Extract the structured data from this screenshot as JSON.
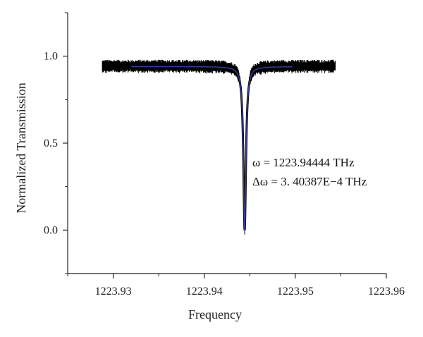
{
  "chart_data": {
    "type": "line",
    "title": "",
    "xlabel": "Frequency",
    "ylabel": "Normalized Transmission",
    "xlim": [
      1223.925,
      1223.96
    ],
    "ylim": [
      -0.25,
      1.25
    ],
    "x_ticks": [
      1223.93,
      1223.94,
      1223.95,
      1223.96
    ],
    "x_tick_labels": [
      "1223.93",
      "1223.94",
      "1223.95",
      "1223.96"
    ],
    "y_ticks": [
      0.0,
      0.5,
      1.0
    ],
    "y_tick_labels": [
      "0.0",
      "0.5",
      "1.0"
    ],
    "grid": false,
    "series": [
      {
        "role": "measured",
        "color": "#000000",
        "x_range": [
          1223.9288,
          1223.9544
        ],
        "baseline": 0.94,
        "noise_amplitude": 0.04,
        "resonance_center": 1223.94444,
        "linewidth": 0.00034,
        "minimum": 0.0
      },
      {
        "role": "fit",
        "color": "#3b3f9a",
        "x_range": [
          1223.932,
          1223.9497
        ],
        "baseline": 0.94,
        "resonance_center": 1223.94444,
        "linewidth": 0.00034,
        "minimum": 0.0
      }
    ],
    "annotations": [
      "ω = 1223.94444 THz",
      "Δω = 3. 40387E−4 THz"
    ]
  }
}
